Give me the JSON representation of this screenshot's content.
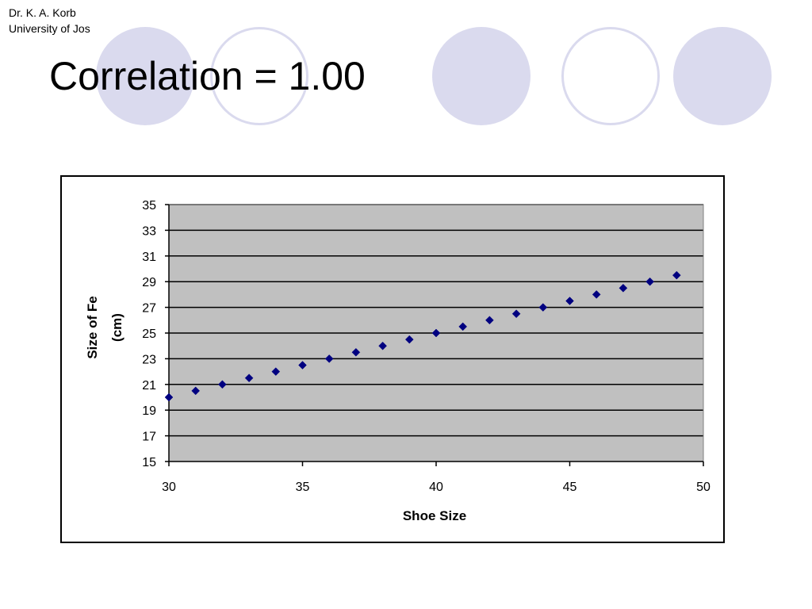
{
  "slide": {
    "author_name": "Dr. K. A. Korb",
    "author_affiliation": "University of Jos",
    "title": "Correlation = 1.00",
    "decoration_colors": {
      "fill": "#dadaee",
      "ring": "#dadaee"
    }
  },
  "chart_data": {
    "type": "scatter",
    "title": "",
    "xlabel": "Shoe Size",
    "ylabel_lines": [
      "Size of Fe",
      "(cm)"
    ],
    "xlim": [
      30,
      50
    ],
    "ylim": [
      15,
      35
    ],
    "xticks": [
      30,
      35,
      40,
      45,
      50
    ],
    "yticks": [
      15,
      17,
      19,
      21,
      23,
      25,
      27,
      29,
      31,
      33,
      35
    ],
    "grid": "horizontal",
    "plot_background": "#c0c0c0",
    "marker": "diamond",
    "marker_color": "#000080",
    "series": [
      {
        "x": [
          30,
          31,
          32,
          33,
          34,
          35,
          36,
          37,
          38,
          39,
          40,
          41,
          42,
          43,
          44,
          45,
          46,
          47,
          48,
          49
        ],
        "y": [
          20,
          20.5,
          21,
          21.5,
          22,
          22.5,
          23,
          23.5,
          24,
          24.5,
          25,
          25.5,
          26,
          26.5,
          27,
          27.5,
          28,
          28.5,
          29,
          29.5
        ]
      }
    ]
  }
}
